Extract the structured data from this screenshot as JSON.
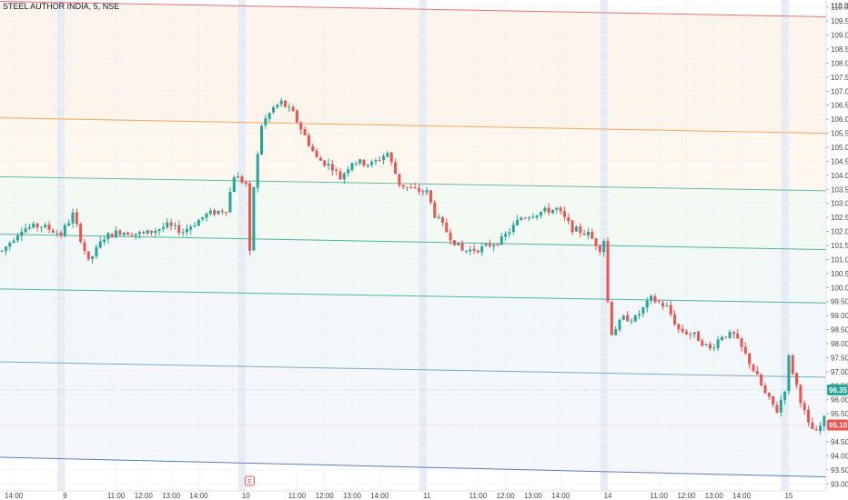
{
  "header": {
    "symbol_title": "STEEL AUTHOR INDIA, 5, NSE"
  },
  "chart_data": {
    "type": "candlestick",
    "title": "STEEL AUTHOR INDIA, 5, NSE",
    "ylim": [
      92.75,
      110.25
    ],
    "y_ticks": [
      "110.00",
      "109.50",
      "109.00",
      "108.50",
      "108.00",
      "107.50",
      "107.00",
      "106.50",
      "106.00",
      "105.50",
      "105.00",
      "104.50",
      "104.00",
      "103.50",
      "103.00",
      "102.50",
      "102.00",
      "101.50",
      "101.00",
      "100.50",
      "100.00",
      "99.50",
      "99.00",
      "98.50",
      "98.00",
      "97.50",
      "97.00",
      "96.50",
      "96.00",
      "95.50",
      "95.00",
      "94.50",
      "94.00",
      "93.50",
      "93.00"
    ],
    "y_top_partial": "110.00",
    "x_ticks": [
      {
        "label": "14:00",
        "bar": 3
      },
      {
        "label": "9",
        "bar": 16
      },
      {
        "label": "11:00",
        "bar": 29
      },
      {
        "label": "12:00",
        "bar": 36
      },
      {
        "label": "13:00",
        "bar": 43
      },
      {
        "label": "14:00",
        "bar": 50
      },
      {
        "label": "10",
        "bar": 62
      },
      {
        "label": "11:00",
        "bar": 75
      },
      {
        "label": "12:00",
        "bar": 82
      },
      {
        "label": "13:00",
        "bar": 89
      },
      {
        "label": "14:00",
        "bar": 96
      },
      {
        "label": "11",
        "bar": 108
      },
      {
        "label": "11:00",
        "bar": 121
      },
      {
        "label": "12:00",
        "bar": 128
      },
      {
        "label": "13:00",
        "bar": 135
      },
      {
        "label": "14:00",
        "bar": 142
      },
      {
        "label": "14",
        "bar": 154
      },
      {
        "label": "11:00",
        "bar": 167
      },
      {
        "label": "12:00",
        "bar": 174
      },
      {
        "label": "13:00",
        "bar": 181
      },
      {
        "label": "14:00",
        "bar": 188
      },
      {
        "label": "15",
        "bar": 200
      }
    ],
    "session_breaks": [
      15.5,
      61.5,
      107.5,
      153.5,
      199.5
    ],
    "bar_count": 210,
    "anchors": [
      [
        0,
        101.3
      ],
      [
        5,
        102.1
      ],
      [
        10,
        102.2
      ],
      [
        15,
        101.9
      ],
      [
        18,
        102.6
      ],
      [
        22,
        100.9
      ],
      [
        26,
        101.8
      ],
      [
        30,
        102.0
      ],
      [
        36,
        101.9
      ],
      [
        42,
        102.2
      ],
      [
        46,
        102.0
      ],
      [
        52,
        102.6
      ],
      [
        57,
        102.8
      ],
      [
        59,
        104.0
      ],
      [
        62,
        103.7
      ],
      [
        63,
        101.2
      ],
      [
        64,
        103.6
      ],
      [
        66,
        105.8
      ],
      [
        69,
        106.4
      ],
      [
        71,
        106.6
      ],
      [
        74,
        106.2
      ],
      [
        77,
        105.4
      ],
      [
        80,
        104.6
      ],
      [
        84,
        104.3
      ],
      [
        86,
        103.9
      ],
      [
        89,
        104.5
      ],
      [
        94,
        104.4
      ],
      [
        98,
        104.8
      ],
      [
        101,
        103.7
      ],
      [
        104,
        103.5
      ],
      [
        108,
        103.4
      ],
      [
        110,
        102.6
      ],
      [
        114,
        101.8
      ],
      [
        117,
        101.3
      ],
      [
        122,
        101.4
      ],
      [
        127,
        101.7
      ],
      [
        132,
        102.5
      ],
      [
        137,
        102.7
      ],
      [
        141,
        102.8
      ],
      [
        145,
        102.1
      ],
      [
        149,
        101.9
      ],
      [
        152,
        101.4
      ],
      [
        153,
        101.7
      ],
      [
        154,
        99.5
      ],
      [
        155,
        98.4
      ],
      [
        158,
        98.9
      ],
      [
        161,
        98.9
      ],
      [
        165,
        99.6
      ],
      [
        169,
        99.3
      ],
      [
        172,
        98.5
      ],
      [
        176,
        98.3
      ],
      [
        180,
        97.8
      ],
      [
        183,
        98.3
      ],
      [
        186,
        98.3
      ],
      [
        189,
        97.6
      ],
      [
        192,
        96.8
      ],
      [
        194,
        96.2
      ],
      [
        197,
        95.6
      ],
      [
        199,
        96.4
      ],
      [
        200,
        97.5
      ],
      [
        203,
        96.0
      ],
      [
        205,
        95.1
      ],
      [
        207,
        94.8
      ],
      [
        209,
        95.3
      ]
    ],
    "overlay_lines": [
      {
        "color": "#e57373",
        "y_start": 110.2,
        "y_end": 109.65,
        "band": "#fdf5ec"
      },
      {
        "color": "#f5a55d",
        "y_start": 106.05,
        "y_end": 105.5,
        "band": "#fdf7ee"
      },
      {
        "color": "#66bb9a",
        "y_start": 103.95,
        "y_end": 103.45,
        "band": "#f3faf2"
      },
      {
        "color": "#4fb39a",
        "y_start": 101.9,
        "y_end": 101.35,
        "band": "#f2f8f7"
      },
      {
        "color": "#4fb3a5",
        "y_start": 99.95,
        "y_end": 99.45,
        "band": "#f2f8fa"
      },
      {
        "color": "#7aa7c7",
        "y_start": 97.35,
        "y_end": 96.8,
        "band": "#f4f7fb"
      },
      {
        "color": "#5a7fb8",
        "y_start": 93.95,
        "y_end": 93.25,
        "band": null
      }
    ],
    "price_labels": [
      {
        "value": "96.35",
        "y": 96.35,
        "color": "#26a69a"
      },
      {
        "value": "95.10",
        "y": 95.1,
        "color": "#ef5350"
      }
    ],
    "grid": true,
    "event_marker": {
      "text": "E",
      "bar": 63
    },
    "colors": {
      "up": "#26a69a",
      "down": "#ef5350",
      "session_band": "#e6ecf4",
      "axis_text": "#434651",
      "axis_line": "#e0e3eb"
    }
  }
}
